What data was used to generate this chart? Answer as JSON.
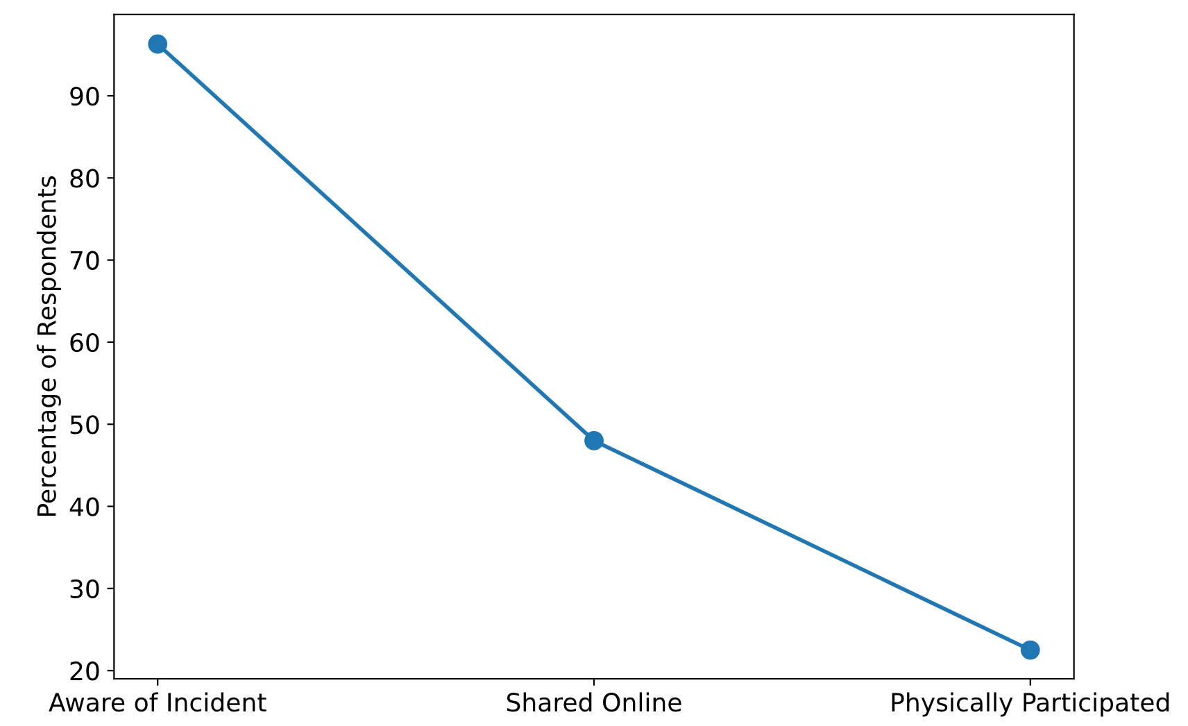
{
  "chart_data": {
    "type": "line",
    "ylabel": "Percentage of Respondents",
    "categories": [
      "Aware of Incident",
      "Shared Online",
      "Physically Participated"
    ],
    "series": [
      {
        "color": "#1f77b4",
        "values": [
          96.3,
          48.0,
          22.5
        ]
      }
    ],
    "ylim": [
      19,
      99.9
    ],
    "yticks": [
      20,
      30,
      40,
      50,
      60,
      70,
      80,
      90
    ],
    "marker": "circle",
    "line_style": "solid",
    "grid": false,
    "legend": false
  }
}
